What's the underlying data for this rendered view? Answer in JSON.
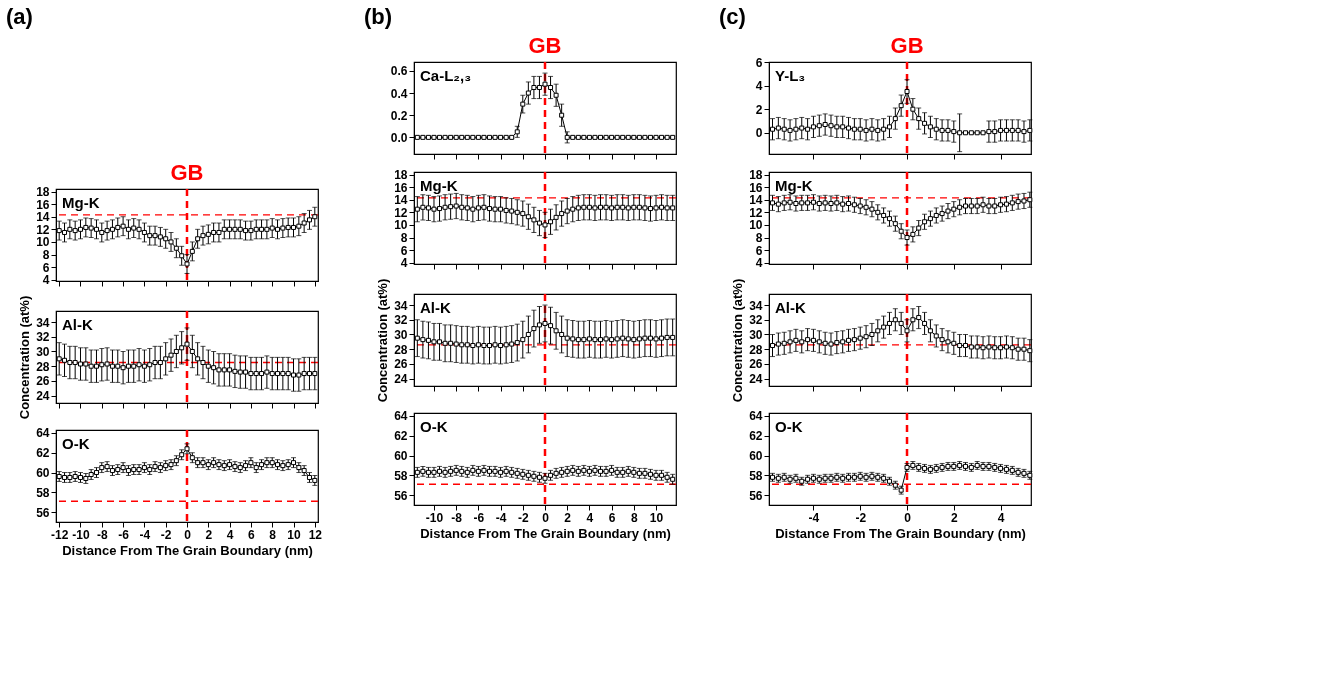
{
  "chart_data": [
    {
      "type": "line",
      "title": "Mg-K",
      "annotations": [
        "(a)",
        "GB"
      ],
      "marker": "square",
      "line_style": "solid",
      "color": "#000000",
      "tick_labels": "y",
      "x": [
        -12,
        -11.5,
        -11,
        -10.5,
        -10,
        -9.5,
        -9,
        -8.5,
        -8,
        -7.5,
        -7,
        -6.5,
        -6,
        -5.5,
        -5,
        -4.5,
        -4,
        -3.5,
        -3,
        -2.5,
        -2,
        -1.5,
        -1,
        -0.5,
        0,
        0.5,
        1,
        1.5,
        2,
        2.5,
        3,
        3.5,
        4,
        4.5,
        5,
        5.5,
        6,
        6.5,
        7,
        7.5,
        8,
        8.5,
        9,
        9.5,
        10,
        10.5,
        11,
        11.5,
        12
      ],
      "values": [
        11.8,
        11.5,
        12,
        11.8,
        12,
        12.3,
        12.2,
        12,
        11.5,
        11.8,
        12,
        12.3,
        12.5,
        12,
        12.2,
        12,
        11.5,
        11,
        11,
        10.8,
        10.5,
        10,
        9,
        7.8,
        6.5,
        8.5,
        10.5,
        11,
        11.2,
        11.5,
        11.5,
        12,
        12,
        12,
        12,
        11.8,
        11.8,
        12,
        12,
        12,
        12.2,
        12,
        12.2,
        12.3,
        12.3,
        12.5,
        13,
        13.5,
        14
      ],
      "errors": [
        1.5,
        1.5,
        1.5,
        1.5,
        1.5,
        1.5,
        1.5,
        1.5,
        1.5,
        1.5,
        1.5,
        1.5,
        1.5,
        1.5,
        1.5,
        1.5,
        1.5,
        1.5,
        1.5,
        1.5,
        1.5,
        1.5,
        1.5,
        1.5,
        1.5,
        1.5,
        1.5,
        1.5,
        1.5,
        1.5,
        1.5,
        1.5,
        1.5,
        1.5,
        1.5,
        1.5,
        1.5,
        1.5,
        1.5,
        1.5,
        1.5,
        1.5,
        1.5,
        1.5,
        1.5,
        1.5,
        1.5,
        1.5,
        1.5
      ],
      "xlim": [
        -12.3,
        12.3
      ],
      "xticks": [
        -12,
        -10,
        -8,
        -6,
        -4,
        -2,
        0,
        2,
        4,
        6,
        8,
        10,
        12
      ],
      "ylim": [
        3.8,
        18.4
      ],
      "yticks": [
        4,
        6,
        8,
        10,
        12,
        14,
        16,
        18
      ],
      "ref_lines": [
        {
          "axis": "y",
          "value": 14.3,
          "color": "#ff0000",
          "line_style": "dashed"
        },
        {
          "axis": "x",
          "value": 0,
          "color": "#ff0000",
          "line_style": "dashed"
        }
      ]
    },
    {
      "type": "line",
      "title": "Al-K",
      "ylabel": "Concentration (at%)",
      "marker": "square",
      "line_style": "solid",
      "color": "#000000",
      "tick_labels": "y",
      "x": [
        -12,
        -11.5,
        -11,
        -10.5,
        -10,
        -9.5,
        -9,
        -8.5,
        -8,
        -7.5,
        -7,
        -6.5,
        -6,
        -5.5,
        -5,
        -4.5,
        -4,
        -3.5,
        -3,
        -2.5,
        -2,
        -1.5,
        -1,
        -0.5,
        0,
        0.5,
        1,
        1.5,
        2,
        2.5,
        3,
        3.5,
        4,
        4.5,
        5,
        5.5,
        6,
        6.5,
        7,
        7.5,
        8,
        8.5,
        9,
        9.5,
        10,
        10.5,
        11,
        11.5,
        12
      ],
      "values": [
        29,
        28.8,
        28.5,
        28.5,
        28.3,
        28.3,
        28,
        28,
        28.2,
        28.3,
        28,
        28,
        27.8,
        28,
        28,
        28.2,
        28,
        28.2,
        28.5,
        28.5,
        29,
        29.5,
        30,
        30.5,
        31,
        30,
        29,
        28.5,
        28,
        27.8,
        27.5,
        27.5,
        27.5,
        27.3,
        27.2,
        27.2,
        27,
        27,
        27,
        27.2,
        27,
        27,
        27,
        27,
        26.8,
        26.8,
        27,
        27,
        27
      ],
      "errors": [
        2.2,
        2.2,
        2.2,
        2.2,
        2.2,
        2.2,
        2.2,
        2.2,
        2.2,
        2.2,
        2.2,
        2.2,
        2.2,
        2.2,
        2.2,
        2.2,
        2.2,
        2.2,
        2.2,
        2.2,
        2.2,
        2.2,
        2.2,
        2.2,
        2.2,
        2.2,
        2.2,
        2.2,
        2.2,
        2.2,
        2.2,
        2.2,
        2.2,
        2.2,
        2.2,
        2.2,
        2.2,
        2.2,
        2.2,
        2.2,
        2.2,
        2.2,
        2.2,
        2.2,
        2.2,
        2.2,
        2.2,
        2.2,
        2.2
      ],
      "xlim": [
        -12.3,
        12.3
      ],
      "xticks": [
        -12,
        -10,
        -8,
        -6,
        -4,
        -2,
        0,
        2,
        4,
        6,
        8,
        10,
        12
      ],
      "ylim": [
        23,
        35.5
      ],
      "yticks": [
        24,
        26,
        28,
        30,
        32,
        34
      ],
      "ref_lines": [
        {
          "axis": "y",
          "value": 28.5,
          "color": "#ff0000",
          "line_style": "dashed"
        },
        {
          "axis": "x",
          "value": 0,
          "color": "#ff0000",
          "line_style": "dashed"
        }
      ]
    },
    {
      "type": "line",
      "title": "O-K",
      "xlabel": "Distance From The Grain Boundary (nm)",
      "marker": "square",
      "line_style": "solid",
      "color": "#000000",
      "x": [
        -12,
        -11.5,
        -11,
        -10.5,
        -10,
        -9.5,
        -9,
        -8.5,
        -8,
        -7.5,
        -7,
        -6.5,
        -6,
        -5.5,
        -5,
        -4.5,
        -4,
        -3.5,
        -3,
        -2.5,
        -2,
        -1.5,
        -1,
        -0.5,
        0,
        0.5,
        1,
        1.5,
        2,
        2.5,
        3,
        3.5,
        4,
        4.5,
        5,
        5.5,
        6,
        6.5,
        7,
        7.5,
        8,
        8.5,
        9,
        9.5,
        10,
        10.5,
        11,
        11.5,
        12
      ],
      "values": [
        59.6,
        59.5,
        59.5,
        59.6,
        59.5,
        59.4,
        59.8,
        60,
        60.5,
        60.6,
        60.2,
        60.3,
        60.5,
        60.2,
        60.3,
        60.3,
        60.5,
        60.3,
        60.6,
        60.5,
        60.7,
        60.8,
        61.2,
        61.8,
        62.4,
        61.5,
        61,
        61,
        60.8,
        61,
        60.8,
        60.7,
        60.8,
        60.6,
        60.5,
        60.7,
        61,
        60.5,
        60.8,
        61,
        61,
        60.8,
        60.7,
        60.8,
        61,
        60.5,
        60.2,
        59.5,
        59.2
      ],
      "errors": [
        0.5,
        0.5,
        0.5,
        0.5,
        0.5,
        0.5,
        0.5,
        0.5,
        0.5,
        0.5,
        0.5,
        0.5,
        0.5,
        0.5,
        0.5,
        0.5,
        0.5,
        0.5,
        0.5,
        0.5,
        0.5,
        0.5,
        0.5,
        0.5,
        0.5,
        0.5,
        0.5,
        0.5,
        0.5,
        0.5,
        0.5,
        0.5,
        0.5,
        0.5,
        0.5,
        0.5,
        0.5,
        0.5,
        0.5,
        0.5,
        0.5,
        0.5,
        0.5,
        0.5,
        0.5,
        0.5,
        0.5,
        0.5,
        0.5
      ],
      "xlim": [
        -12.3,
        12.3
      ],
      "xticks": [
        -12,
        -10,
        -8,
        -6,
        -4,
        -2,
        0,
        2,
        4,
        6,
        8,
        10,
        12
      ],
      "ylim": [
        55,
        64.3
      ],
      "yticks": [
        56,
        58,
        60,
        62,
        64
      ],
      "ref_lines": [
        {
          "axis": "y",
          "value": 57.1,
          "color": "#ff0000",
          "line_style": "dashed"
        },
        {
          "axis": "x",
          "value": 0,
          "color": "#ff0000",
          "line_style": "dashed"
        }
      ]
    },
    {
      "type": "line",
      "title": "Ca-L₂,₃",
      "annotations": [
        "(b)",
        "GB"
      ],
      "marker": "square",
      "line_style": "solid",
      "color": "#000000",
      "tick_labels": "y",
      "x": [
        -11.5,
        -11,
        -10.5,
        -10,
        -9.5,
        -9,
        -8.5,
        -8,
        -7.5,
        -7,
        -6.5,
        -6,
        -5.5,
        -5,
        -4.5,
        -4,
        -3.5,
        -3,
        -2.5,
        -2,
        -1.5,
        -1,
        -0.5,
        0,
        0.5,
        1,
        1.5,
        2,
        2.5,
        3,
        3.5,
        4,
        4.5,
        5,
        5.5,
        6,
        6.5,
        7,
        7.5,
        8,
        8.5,
        9,
        9.5,
        10,
        10.5,
        11,
        11.5
      ],
      "values": [
        0,
        0,
        0,
        0,
        0,
        0,
        0,
        0,
        0,
        0,
        0,
        0,
        0,
        0,
        0,
        0,
        0,
        0,
        0.05,
        0.3,
        0.4,
        0.45,
        0.45,
        0.48,
        0.45,
        0.38,
        0.2,
        0,
        0,
        0,
        0,
        0,
        0,
        0,
        0,
        0,
        0,
        0,
        0,
        0,
        0,
        0,
        0,
        0,
        0,
        0,
        0
      ],
      "errors": [
        0.01,
        0.01,
        0.01,
        0.01,
        0.01,
        0.01,
        0.01,
        0.01,
        0.01,
        0.01,
        0.01,
        0.01,
        0.01,
        0.01,
        0.01,
        0.01,
        0.01,
        0.01,
        0.05,
        0.08,
        0.1,
        0.1,
        0.1,
        0.1,
        0.1,
        0.1,
        0.1,
        0.05,
        0.01,
        0.01,
        0.01,
        0.01,
        0.01,
        0.01,
        0.01,
        0.01,
        0.01,
        0.01,
        0.01,
        0.01,
        0.01,
        0.01,
        0.01,
        0.01,
        0.01,
        0.01,
        0.01
      ],
      "xlim": [
        -11.8,
        11.8
      ],
      "xticks": [
        -10,
        -8,
        -6,
        -4,
        -2,
        0,
        2,
        4,
        6,
        8,
        10
      ],
      "ylim": [
        -0.15,
        0.68
      ],
      "yticks": [
        {
          "value": 0,
          "label": "0.0"
        },
        {
          "value": 0.2,
          "label": "0.2"
        },
        {
          "value": 0.4,
          "label": "0.4"
        },
        {
          "value": 0.6,
          "label": "0.6"
        }
      ],
      "ref_lines": [
        {
          "axis": "x",
          "value": 0,
          "color": "#ff0000",
          "line_style": "dashed"
        }
      ]
    },
    {
      "type": "line",
      "title": "Mg-K",
      "marker": "square",
      "line_style": "solid",
      "color": "#000000",
      "tick_labels": "y",
      "x": [
        -11.5,
        -11,
        -10.5,
        -10,
        -9.5,
        -9,
        -8.5,
        -8,
        -7.5,
        -7,
        -6.5,
        -6,
        -5.5,
        -5,
        -4.5,
        -4,
        -3.5,
        -3,
        -2.5,
        -2,
        -1.5,
        -1,
        -0.5,
        0,
        0.5,
        1,
        1.5,
        2,
        2.5,
        3,
        3.5,
        4,
        4.5,
        5,
        5.5,
        6,
        6.5,
        7,
        7.5,
        8,
        8.5,
        9,
        9.5,
        10,
        10.5,
        11,
        11.5
      ],
      "values": [
        12.5,
        12.8,
        12.7,
        12.5,
        12.6,
        12.8,
        12.9,
        13,
        12.8,
        12.7,
        12.5,
        12.7,
        12.8,
        12.6,
        12.5,
        12.5,
        12.3,
        12.2,
        12,
        11.8,
        11.3,
        10.8,
        10.3,
        10,
        10.5,
        11.2,
        11.8,
        12.2,
        12.5,
        12.7,
        12.8,
        12.8,
        12.7,
        12.8,
        12.8,
        12.7,
        12.8,
        12.8,
        12.7,
        12.8,
        12.8,
        12.7,
        12.6,
        12.7,
        12.8,
        12.7,
        12.7
      ],
      "errors": [
        2,
        2,
        2,
        2,
        2,
        2,
        2,
        2,
        2,
        2,
        2,
        2,
        2,
        2,
        2,
        2,
        2,
        2,
        2,
        2,
        2,
        2,
        2,
        2,
        2,
        2,
        2,
        2,
        2,
        2,
        2,
        2,
        2,
        2,
        2,
        2,
        2,
        2,
        2,
        2,
        2,
        2,
        2,
        2,
        2,
        2,
        2
      ],
      "xlim": [
        -11.8,
        11.8
      ],
      "xticks": [
        -10,
        -8,
        -6,
        -4,
        -2,
        0,
        2,
        4,
        6,
        8,
        10
      ],
      "ylim": [
        3.8,
        18.4
      ],
      "yticks": [
        4,
        6,
        8,
        10,
        12,
        14,
        16,
        18
      ],
      "ref_lines": [
        {
          "axis": "y",
          "value": 14.3,
          "color": "#ff0000",
          "line_style": "dashed"
        },
        {
          "axis": "x",
          "value": 0,
          "color": "#ff0000",
          "line_style": "dashed"
        }
      ]
    },
    {
      "type": "line",
      "title": "Al-K",
      "ylabel": "Concentration (at%)",
      "marker": "square",
      "line_style": "solid",
      "color": "#000000",
      "tick_labels": "y",
      "x": [
        -11.5,
        -11,
        -10.5,
        -10,
        -9.5,
        -9,
        -8.5,
        -8,
        -7.5,
        -7,
        -6.5,
        -6,
        -5.5,
        -5,
        -4.5,
        -4,
        -3.5,
        -3,
        -2.5,
        -2,
        -1.5,
        -1,
        -0.5,
        0,
        0.5,
        1,
        1.5,
        2,
        2.5,
        3,
        3.5,
        4,
        4.5,
        5,
        5.5,
        6,
        6.5,
        7,
        7.5,
        8,
        8.5,
        9,
        9.5,
        10,
        10.5,
        11,
        11.5
      ],
      "values": [
        29.5,
        29.3,
        29.2,
        29,
        29,
        28.8,
        28.8,
        28.7,
        28.6,
        28.6,
        28.5,
        28.6,
        28.5,
        28.5,
        28.6,
        28.5,
        28.6,
        28.7,
        28.9,
        29.3,
        30,
        30.8,
        31.3,
        31.5,
        31.2,
        30.5,
        30,
        29.5,
        29.4,
        29.3,
        29.3,
        29.4,
        29.3,
        29.3,
        29.4,
        29.3,
        29.4,
        29.5,
        29.4,
        29.3,
        29.4,
        29.5,
        29.5,
        29.4,
        29.5,
        29.6,
        29.6
      ],
      "errors": [
        2.5,
        2.5,
        2.5,
        2.5,
        2.5,
        2.5,
        2.5,
        2.5,
        2.5,
        2.5,
        2.5,
        2.5,
        2.5,
        2.5,
        2.5,
        2.5,
        2.5,
        2.5,
        2.5,
        2.5,
        2.5,
        2.5,
        2.5,
        2.5,
        2.5,
        2.5,
        2.5,
        2.5,
        2.5,
        2.5,
        2.5,
        2.5,
        2.5,
        2.5,
        2.5,
        2.5,
        2.5,
        2.5,
        2.5,
        2.5,
        2.5,
        2.5,
        2.5,
        2.5,
        2.5,
        2.5,
        2.5
      ],
      "xlim": [
        -11.8,
        11.8
      ],
      "xticks": [
        -10,
        -8,
        -6,
        -4,
        -2,
        0,
        2,
        4,
        6,
        8,
        10
      ],
      "ylim": [
        23,
        35.5
      ],
      "yticks": [
        24,
        26,
        28,
        30,
        32,
        34
      ],
      "ref_lines": [
        {
          "axis": "y",
          "value": 28.6,
          "color": "#ff0000",
          "line_style": "dashed"
        },
        {
          "axis": "x",
          "value": 0,
          "color": "#ff0000",
          "line_style": "dashed"
        }
      ]
    },
    {
      "type": "line",
      "title": "O-K",
      "xlabel": "Distance From The Grain Boundary (nm)",
      "marker": "square",
      "line_style": "solid",
      "color": "#000000",
      "x": [
        -11.5,
        -11,
        -10.5,
        -10,
        -9.5,
        -9,
        -8.5,
        -8,
        -7.5,
        -7,
        -6.5,
        -6,
        -5.5,
        -5,
        -4.5,
        -4,
        -3.5,
        -3,
        -2.5,
        -2,
        -1.5,
        -1,
        -0.5,
        0,
        0.5,
        1,
        1.5,
        2,
        2.5,
        3,
        3.5,
        4,
        4.5,
        5,
        5.5,
        6,
        6.5,
        7,
        7.5,
        8,
        8.5,
        9,
        9.5,
        10,
        10.5,
        11,
        11.5
      ],
      "values": [
        58.3,
        58.4,
        58.3,
        58.3,
        58.4,
        58.3,
        58.4,
        58.5,
        58.4,
        58.3,
        58.5,
        58.4,
        58.5,
        58.4,
        58.4,
        58.3,
        58.4,
        58.3,
        58.2,
        58.1,
        58,
        57.9,
        57.8,
        57.7,
        58,
        58.2,
        58.3,
        58.4,
        58.5,
        58.4,
        58.5,
        58.4,
        58.5,
        58.4,
        58.4,
        58.5,
        58.3,
        58.3,
        58.4,
        58.3,
        58.2,
        58.2,
        58.1,
        58,
        58,
        57.8,
        57.6
      ],
      "errors": [
        0.5,
        0.5,
        0.5,
        0.5,
        0.5,
        0.5,
        0.5,
        0.5,
        0.5,
        0.5,
        0.5,
        0.5,
        0.5,
        0.5,
        0.5,
        0.5,
        0.5,
        0.5,
        0.5,
        0.5,
        0.5,
        0.5,
        0.5,
        0.5,
        0.5,
        0.5,
        0.5,
        0.5,
        0.5,
        0.5,
        0.5,
        0.5,
        0.5,
        0.5,
        0.5,
        0.5,
        0.5,
        0.5,
        0.5,
        0.5,
        0.5,
        0.5,
        0.5,
        0.5,
        0.5,
        0.5,
        0.5
      ],
      "xlim": [
        -11.8,
        11.8
      ],
      "xticks": [
        -10,
        -8,
        -6,
        -4,
        -2,
        0,
        2,
        4,
        6,
        8,
        10
      ],
      "ylim": [
        55,
        64.3
      ],
      "yticks": [
        56,
        58,
        60,
        62,
        64
      ],
      "ref_lines": [
        {
          "axis": "y",
          "value": 57.1,
          "color": "#ff0000",
          "line_style": "dashed"
        },
        {
          "axis": "x",
          "value": 0,
          "color": "#ff0000",
          "line_style": "dashed"
        }
      ]
    },
    {
      "type": "line",
      "title": "Y-L₃",
      "annotations": [
        "(c)",
        "GB"
      ],
      "marker": "square",
      "line_style": "solid",
      "color": "#000000",
      "tick_labels": "y",
      "x": [
        -5.75,
        -5.5,
        -5.25,
        -5,
        -4.75,
        -4.5,
        -4.25,
        -4,
        -3.75,
        -3.5,
        -3.25,
        -3,
        -2.75,
        -2.5,
        -2.25,
        -2,
        -1.75,
        -1.5,
        -1.25,
        -1,
        -0.75,
        -0.5,
        -0.25,
        0,
        0.25,
        0.5,
        0.75,
        1,
        1.25,
        1.5,
        1.75,
        2,
        2.25,
        2.5,
        2.75,
        3,
        3.25,
        3.5,
        3.75,
        4,
        4.25,
        4.5,
        4.75,
        5,
        5.25
      ],
      "values": [
        0.3,
        0.4,
        0.3,
        0.2,
        0.3,
        0.4,
        0.3,
        0.5,
        0.6,
        0.7,
        0.6,
        0.5,
        0.5,
        0.4,
        0.3,
        0.3,
        0.2,
        0.3,
        0.2,
        0.3,
        0.5,
        1.2,
        2.3,
        3.5,
        2,
        1.2,
        0.8,
        0.5,
        0.3,
        0.2,
        0.2,
        0.1,
        0,
        0,
        0,
        0,
        0,
        0.1,
        0.1,
        0.2,
        0.2,
        0.2,
        0.2,
        0.1,
        0.2
      ],
      "errors": [
        0.9,
        0.9,
        0.9,
        0.9,
        0.9,
        0.9,
        0.9,
        0.9,
        0.9,
        0.9,
        0.9,
        0.9,
        0.9,
        0.9,
        0.9,
        0.9,
        0.9,
        0.9,
        0.9,
        0.9,
        0.9,
        0.9,
        0.9,
        1,
        0.9,
        0.9,
        0.9,
        0.9,
        0.9,
        0.9,
        0.9,
        0.9,
        1.6,
        0.05,
        0.05,
        0.05,
        0.05,
        0.9,
        0.9,
        0.9,
        0.9,
        0.9,
        0.9,
        0.9,
        0.9
      ],
      "xlim": [
        -5.9,
        5.3
      ],
      "xticks": [
        -4,
        -2,
        0,
        2,
        4
      ],
      "ylim": [
        -1.8,
        6
      ],
      "yticks": [
        0,
        2,
        4,
        6
      ],
      "ref_lines": [
        {
          "axis": "x",
          "value": 0,
          "color": "#ff0000",
          "line_style": "dashed"
        }
      ]
    },
    {
      "type": "line",
      "title": "Mg-K",
      "marker": "square",
      "line_style": "solid",
      "color": "#000000",
      "tick_labels": "y",
      "x": [
        -5.75,
        -5.5,
        -5.25,
        -5,
        -4.75,
        -4.5,
        -4.25,
        -4,
        -3.75,
        -3.5,
        -3.25,
        -3,
        -2.75,
        -2.5,
        -2.25,
        -2,
        -1.75,
        -1.5,
        -1.25,
        -1,
        -0.75,
        -0.5,
        -0.25,
        0,
        0.25,
        0.5,
        0.75,
        1,
        1.25,
        1.5,
        1.75,
        2,
        2.25,
        2.5,
        2.75,
        3,
        3.25,
        3.5,
        3.75,
        4,
        4.25,
        4.5,
        4.75,
        5,
        5.25
      ],
      "values": [
        13.5,
        13.3,
        13.5,
        13.6,
        13.4,
        13.5,
        13.5,
        13.6,
        13.4,
        13.5,
        13.4,
        13.5,
        13.3,
        13.4,
        13.2,
        13,
        12.8,
        12.5,
        12,
        11.5,
        11,
        10.2,
        9,
        8,
        8.5,
        9.5,
        10.5,
        11,
        11.5,
        11.8,
        12.2,
        12.5,
        12.8,
        13,
        13,
        13,
        13.2,
        13,
        13,
        13.2,
        13.3,
        13.5,
        13.7,
        13.8,
        14
      ],
      "errors": [
        1.2,
        1.2,
        1.2,
        1.2,
        1.2,
        1.2,
        1.2,
        1.2,
        1.2,
        1.2,
        1.2,
        1.2,
        1.2,
        1.2,
        1.2,
        1.2,
        1.2,
        1.2,
        1.2,
        1.2,
        1.2,
        1.2,
        1.2,
        1.2,
        1.2,
        1.2,
        1.2,
        1.2,
        1.2,
        1.2,
        1.2,
        1.2,
        1.2,
        1.2,
        1.2,
        1.2,
        1.2,
        1.2,
        1.2,
        1.2,
        1.2,
        1.2,
        1.2,
        1.2,
        1.2
      ],
      "xlim": [
        -5.9,
        5.3
      ],
      "xticks": [
        -4,
        -2,
        0,
        2,
        4
      ],
      "ylim": [
        3.8,
        18.4
      ],
      "yticks": [
        4,
        6,
        8,
        10,
        12,
        14,
        16,
        18
      ],
      "ref_lines": [
        {
          "axis": "y",
          "value": 14.3,
          "color": "#ff0000",
          "line_style": "dashed"
        },
        {
          "axis": "x",
          "value": 0,
          "color": "#ff0000",
          "line_style": "dashed"
        }
      ]
    },
    {
      "type": "line",
      "title": "Al-K",
      "ylabel": "Concentration (at%)",
      "marker": "square",
      "line_style": "solid",
      "color": "#000000",
      "tick_labels": "y",
      "x": [
        -5.75,
        -5.5,
        -5.25,
        -5,
        -4.75,
        -4.5,
        -4.25,
        -4,
        -3.75,
        -3.5,
        -3.25,
        -3,
        -2.75,
        -2.5,
        -2.25,
        -2,
        -1.75,
        -1.5,
        -1.25,
        -1,
        -0.75,
        -0.5,
        -0.25,
        0,
        0.25,
        0.5,
        0.75,
        1,
        1.25,
        1.5,
        1.75,
        2,
        2.25,
        2.5,
        2.75,
        3,
        3.25,
        3.5,
        3.75,
        4,
        4.25,
        4.5,
        4.75,
        5,
        5.25
      ],
      "values": [
        28.5,
        28.7,
        28.8,
        29,
        29.2,
        29,
        29.3,
        29.2,
        29,
        28.8,
        28.7,
        28.9,
        29,
        29.2,
        29.3,
        29.5,
        29.7,
        30,
        30.5,
        31,
        31.5,
        32,
        31.5,
        30.5,
        32,
        32.3,
        31.5,
        30.5,
        29.8,
        29.3,
        29,
        28.8,
        28.5,
        28.5,
        28.3,
        28.3,
        28.2,
        28.3,
        28.2,
        28.2,
        28.3,
        28.2,
        28,
        28,
        27.8
      ],
      "errors": [
        1.5,
        1.5,
        1.5,
        1.5,
        1.5,
        1.5,
        1.5,
        1.5,
        1.5,
        1.5,
        1.5,
        1.5,
        1.5,
        1.5,
        1.5,
        1.5,
        1.5,
        1.5,
        1.5,
        1.5,
        1.5,
        1.5,
        1.5,
        1.5,
        1.5,
        1.5,
        1.5,
        1.5,
        1.5,
        1.5,
        1.5,
        1.5,
        1.5,
        1.5,
        1.5,
        1.5,
        1.5,
        1.5,
        1.5,
        1.5,
        1.5,
        1.5,
        1.5,
        1.5,
        1.5
      ],
      "xlim": [
        -5.9,
        5.3
      ],
      "xticks": [
        -4,
        -2,
        0,
        2,
        4
      ],
      "ylim": [
        23,
        35.5
      ],
      "yticks": [
        24,
        26,
        28,
        30,
        32,
        34
      ],
      "ref_lines": [
        {
          "axis": "y",
          "value": 28.6,
          "color": "#ff0000",
          "line_style": "dashed"
        },
        {
          "axis": "x",
          "value": 0,
          "color": "#ff0000",
          "line_style": "dashed"
        }
      ]
    },
    {
      "type": "line",
      "title": "O-K",
      "xlabel": "Distance From The Grain Boundary (nm)",
      "marker": "square",
      "line_style": "solid",
      "color": "#000000",
      "x": [
        -5.75,
        -5.5,
        -5.25,
        -5,
        -4.75,
        -4.5,
        -4.25,
        -4,
        -3.75,
        -3.5,
        -3.25,
        -3,
        -2.75,
        -2.5,
        -2.25,
        -2,
        -1.75,
        -1.5,
        -1.25,
        -1,
        -0.75,
        -0.5,
        -0.25,
        0,
        0.25,
        0.5,
        0.75,
        1,
        1.25,
        1.5,
        1.75,
        2,
        2.25,
        2.5,
        2.75,
        3,
        3.25,
        3.5,
        3.75,
        4,
        4.25,
        4.5,
        4.75,
        5,
        5.25
      ],
      "values": [
        57.8,
        57.7,
        57.8,
        57.6,
        57.7,
        57.4,
        57.6,
        57.7,
        57.6,
        57.7,
        57.7,
        57.8,
        57.7,
        57.8,
        57.8,
        57.9,
        57.8,
        57.9,
        57.8,
        57.7,
        57.4,
        57,
        56.5,
        58.8,
        59,
        58.8,
        58.7,
        58.6,
        58.7,
        58.8,
        58.9,
        58.9,
        59,
        58.9,
        58.8,
        59,
        58.9,
        58.9,
        58.8,
        58.7,
        58.6,
        58.5,
        58.3,
        58.2,
        58
      ],
      "errors": [
        0.4,
        0.4,
        0.4,
        0.4,
        0.4,
        0.4,
        0.4,
        0.4,
        0.4,
        0.4,
        0.4,
        0.4,
        0.4,
        0.4,
        0.4,
        0.4,
        0.4,
        0.4,
        0.4,
        0.4,
        0.4,
        0.4,
        0.4,
        0.4,
        0.4,
        0.4,
        0.4,
        0.4,
        0.4,
        0.4,
        0.4,
        0.4,
        0.4,
        0.4,
        0.4,
        0.4,
        0.4,
        0.4,
        0.4,
        0.4,
        0.4,
        0.4,
        0.4,
        0.4,
        0.4
      ],
      "xlim": [
        -5.9,
        5.3
      ],
      "xticks": [
        -4,
        -2,
        0,
        2,
        4
      ],
      "ylim": [
        55,
        64.3
      ],
      "yticks": [
        56,
        58,
        60,
        62,
        64
      ],
      "ref_lines": [
        {
          "axis": "y",
          "value": 57.1,
          "color": "#ff0000",
          "line_style": "dashed"
        },
        {
          "axis": "x",
          "value": 0,
          "color": "#ff0000",
          "line_style": "dashed"
        }
      ]
    }
  ]
}
